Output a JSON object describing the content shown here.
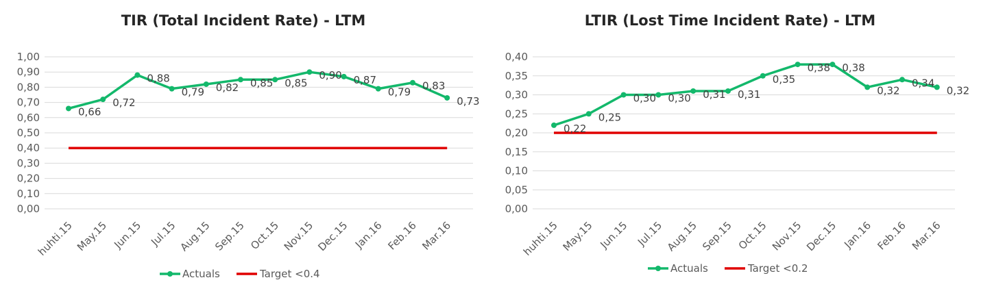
{
  "chart_data": [
    {
      "type": "line",
      "title": "TIR (Total Incident Rate) - LTM",
      "categories": [
        "huhti.15",
        "May.15",
        "Jun.15",
        "Jul.15",
        "Aug.15",
        "Sep.15",
        "Oct.15",
        "Nov.15",
        "Dec.15",
        "Jan.16",
        "Feb.16",
        "Mar.16"
      ],
      "series": [
        {
          "name": "Actuals",
          "color": "#13b86b",
          "values": [
            0.66,
            0.72,
            0.88,
            0.79,
            0.82,
            0.85,
            0.85,
            0.9,
            0.87,
            0.79,
            0.83,
            0.73
          ],
          "value_labels": [
            "0,66",
            "0,72",
            "0,88",
            "0,79",
            "0,82",
            "0,85",
            "0,85",
            "0,90",
            "0,87",
            "0,79",
            "0,83",
            "0,73"
          ]
        },
        {
          "name": "Target <0.4",
          "color": "#e00000",
          "values": [
            0.4,
            0.4,
            0.4,
            0.4,
            0.4,
            0.4,
            0.4,
            0.4,
            0.4,
            0.4,
            0.4,
            0.4
          ]
        }
      ],
      "ylim": [
        0,
        1.0
      ],
      "yticks": [
        "0,00",
        "0,10",
        "0,20",
        "0,30",
        "0,40",
        "0,50",
        "0,60",
        "0,70",
        "0,80",
        "0,90",
        "1,00"
      ],
      "grid": true,
      "legend": "bottom",
      "xlabel": "",
      "ylabel": ""
    },
    {
      "type": "line",
      "title": "LTIR (Lost Time Incident Rate) - LTM",
      "categories": [
        "huhti.15",
        "May.15",
        "Jun.15",
        "Jul.15",
        "Aug.15",
        "Sep.15",
        "Oct.15",
        "Nov.15",
        "Dec.15",
        "Jan.16",
        "Feb.16",
        "Mar.16"
      ],
      "series": [
        {
          "name": "Actuals",
          "color": "#13b86b",
          "values": [
            0.22,
            0.25,
            0.3,
            0.3,
            0.31,
            0.31,
            0.35,
            0.38,
            0.38,
            0.32,
            0.34,
            0.32
          ],
          "value_labels": [
            "0,22",
            "0,25",
            "0,30",
            "0,30",
            "0,31",
            "0,31",
            "0,35",
            "0,38",
            "0,38",
            "0,32",
            "0,34",
            "0,32"
          ]
        },
        {
          "name": "Target <0.2",
          "color": "#e00000",
          "values": [
            0.2,
            0.2,
            0.2,
            0.2,
            0.2,
            0.2,
            0.2,
            0.2,
            0.2,
            0.2,
            0.2,
            0.2
          ]
        }
      ],
      "ylim": [
        0,
        0.4
      ],
      "yticks": [
        "0,00",
        "0,05",
        "0,10",
        "0,15",
        "0,20",
        "0,25",
        "0,30",
        "0,35",
        "0,40"
      ],
      "grid": true,
      "legend": "bottom",
      "xlabel": "",
      "ylabel": ""
    }
  ]
}
